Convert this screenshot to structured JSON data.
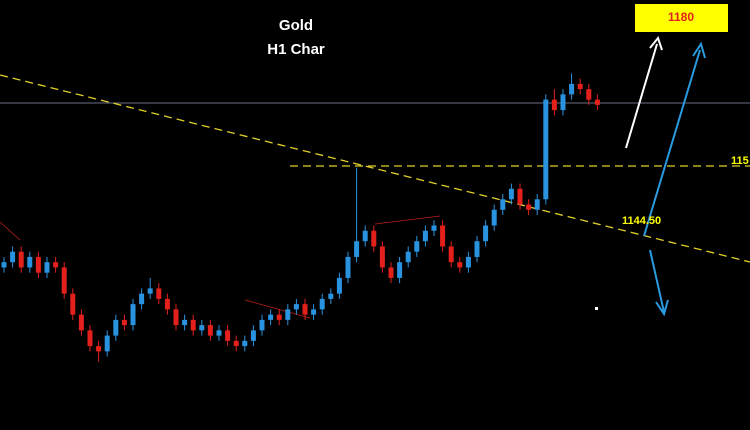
{
  "chart_data": {
    "type": "candlestick",
    "title": "Gold",
    "subtitle": "H1 Char",
    "annotations": [
      "1180",
      "115",
      "1144.50"
    ],
    "up_color": "#2a93e0",
    "down_color": "#e3201c",
    "ylim": [
      1105,
      1187
    ],
    "candles": [
      [
        1136,
        1138,
        1135,
        1137
      ],
      [
        1137,
        1140,
        1136,
        1139
      ],
      [
        1139,
        1140,
        1135,
        1136
      ],
      [
        1136,
        1139,
        1135,
        1138
      ],
      [
        1138,
        1139,
        1134,
        1135
      ],
      [
        1135,
        1138,
        1134,
        1137
      ],
      [
        1137,
        1138,
        1135,
        1136
      ],
      [
        1136,
        1137,
        1130,
        1131
      ],
      [
        1131,
        1132,
        1126,
        1127
      ],
      [
        1127,
        1128,
        1123,
        1124
      ],
      [
        1124,
        1125,
        1120,
        1121
      ],
      [
        1121,
        1122,
        1118,
        1120
      ],
      [
        1120,
        1124,
        1119,
        1123
      ],
      [
        1123,
        1127,
        1122,
        1126
      ],
      [
        1126,
        1127,
        1124,
        1125
      ],
      [
        1125,
        1130,
        1124,
        1129
      ],
      [
        1129,
        1132,
        1128,
        1131
      ],
      [
        1131,
        1134,
        1130,
        1132
      ],
      [
        1132,
        1133,
        1129,
        1130
      ],
      [
        1130,
        1131,
        1127,
        1128
      ],
      [
        1128,
        1129,
        1124,
        1125
      ],
      [
        1125,
        1127,
        1124,
        1126
      ],
      [
        1126,
        1127,
        1123,
        1124
      ],
      [
        1124,
        1126,
        1123,
        1125
      ],
      [
        1125,
        1126,
        1122,
        1123
      ],
      [
        1123,
        1125,
        1122,
        1124
      ],
      [
        1124,
        1125,
        1121,
        1122
      ],
      [
        1122,
        1123,
        1120,
        1121
      ],
      [
        1121,
        1123,
        1120,
        1122
      ],
      [
        1122,
        1125,
        1121,
        1124
      ],
      [
        1124,
        1127,
        1123,
        1126
      ],
      [
        1126,
        1128,
        1125,
        1127
      ],
      [
        1127,
        1128,
        1125,
        1126
      ],
      [
        1126,
        1129,
        1125,
        1128
      ],
      [
        1128,
        1130,
        1127,
        1129
      ],
      [
        1129,
        1130,
        1126,
        1127
      ],
      [
        1127,
        1129,
        1126,
        1128
      ],
      [
        1128,
        1131,
        1127,
        1130
      ],
      [
        1130,
        1132,
        1129,
        1131
      ],
      [
        1131,
        1135,
        1130,
        1134
      ],
      [
        1134,
        1139,
        1133,
        1138
      ],
      [
        1138,
        1155,
        1137,
        1141
      ],
      [
        1141,
        1144,
        1140,
        1143
      ],
      [
        1143,
        1144,
        1139,
        1140
      ],
      [
        1140,
        1141,
        1135,
        1136
      ],
      [
        1136,
        1137,
        1133,
        1134
      ],
      [
        1134,
        1138,
        1133,
        1137
      ],
      [
        1137,
        1140,
        1136,
        1139
      ],
      [
        1139,
        1142,
        1138,
        1141
      ],
      [
        1141,
        1144,
        1140,
        1143
      ],
      [
        1143,
        1145,
        1142,
        1144
      ],
      [
        1144,
        1145,
        1139,
        1140
      ],
      [
        1140,
        1141,
        1136,
        1137
      ],
      [
        1137,
        1138,
        1135,
        1136
      ],
      [
        1136,
        1139,
        1135,
        1138
      ],
      [
        1138,
        1142,
        1137,
        1141
      ],
      [
        1141,
        1145,
        1140,
        1144
      ],
      [
        1144,
        1148,
        1143,
        1147
      ],
      [
        1147,
        1150,
        1146,
        1149
      ],
      [
        1149,
        1152,
        1148,
        1151
      ],
      [
        1151,
        1152,
        1147,
        1148
      ],
      [
        1148,
        1149,
        1146,
        1147
      ],
      [
        1147,
        1150,
        1146,
        1149
      ],
      [
        1149,
        1169,
        1148,
        1168
      ],
      [
        1168,
        1170,
        1165,
        1166
      ],
      [
        1166,
        1170,
        1165,
        1169
      ],
      [
        1169,
        1173,
        1168,
        1171
      ],
      [
        1171,
        1172,
        1169,
        1170
      ],
      [
        1170,
        1171,
        1167,
        1168
      ],
      [
        1168,
        1169,
        1166,
        1167
      ]
    ]
  }
}
